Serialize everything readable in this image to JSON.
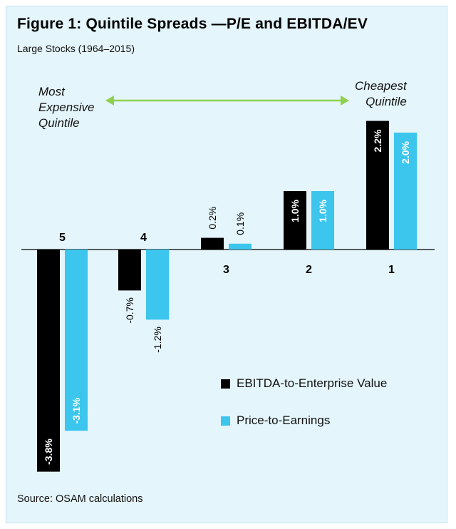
{
  "title": "Figure 1: Quintile Spreads —P/E and EBITDA/EV",
  "subtitle": "Large Stocks (1964–2015)",
  "source": "Source: OSAM calculations",
  "annotations": {
    "left": [
      "Most",
      "Expensive",
      "Quintile"
    ],
    "right": [
      "Cheapest",
      "Quintile"
    ]
  },
  "colors": {
    "ebitda": "#000000",
    "pe": "#3cc6ee",
    "arrow": "#8fd14f",
    "background": "#e4f5fb"
  },
  "chart_data": {
    "type": "bar",
    "title": "Figure 1: Quintile Spreads —P/E and EBITDA/EV",
    "subtitle": "Large Stocks (1964–2015)",
    "categories": [
      "5",
      "4",
      "3",
      "2",
      "1"
    ],
    "series": [
      {
        "name": "EBITDA-to-Enterprise Value",
        "values": [
          -3.8,
          -0.7,
          0.2,
          1.0,
          2.2
        ],
        "labels": [
          "-3.8%",
          "-0.7%",
          "0.2%",
          "1.0%",
          "2.2%"
        ]
      },
      {
        "name": "Price-to-Earnings",
        "values": [
          -3.1,
          -1.2,
          0.1,
          1.0,
          2.0
        ],
        "labels": [
          "-3.1%",
          "-1.2%",
          "0.1%",
          "1.0%",
          "2.0%"
        ]
      }
    ],
    "xlabel": "",
    "ylabel": "",
    "ylim": [
      -3.8,
      2.2
    ],
    "grid": false,
    "legend": "bottom-right"
  }
}
